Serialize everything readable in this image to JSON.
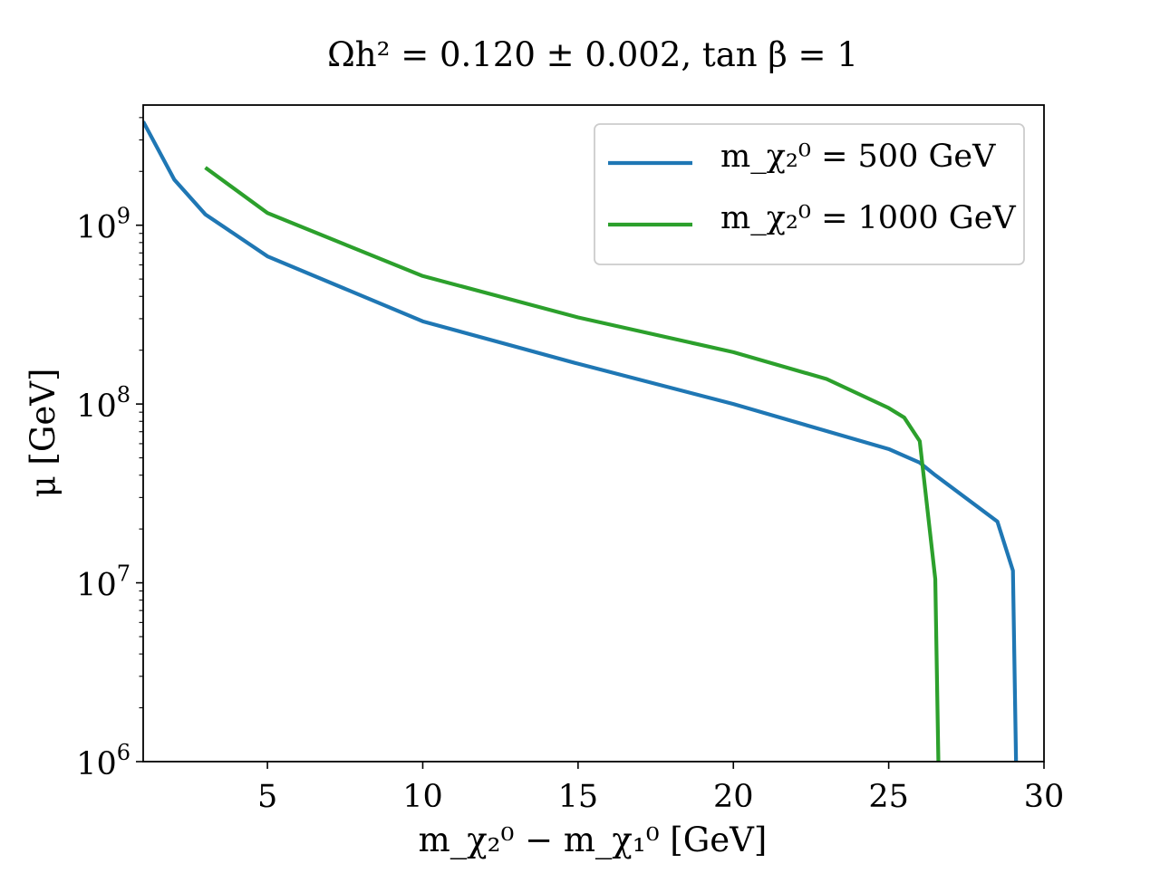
{
  "chart_data": {
    "type": "line",
    "title": "Ωh² = 0.120 ± 0.002,  tan β = 1",
    "xlabel": "m_χ₂⁰ − m_χ₁⁰ [GeV]",
    "ylabel": "μ [GeV]",
    "xlim": [
      1,
      30
    ],
    "ylim": [
      1000000,
      4700000000
    ],
    "yscale": "log",
    "grid": false,
    "legend_position": "upper right",
    "x_ticks": [
      {
        "value": 5,
        "label": "5"
      },
      {
        "value": 10,
        "label": "10"
      },
      {
        "value": 15,
        "label": "15"
      },
      {
        "value": 20,
        "label": "20"
      },
      {
        "value": 25,
        "label": "25"
      },
      {
        "value": 30,
        "label": "30"
      }
    ],
    "y_ticks": [
      {
        "value": 1000000,
        "base": "10",
        "exp": "6"
      },
      {
        "value": 10000000,
        "base": "10",
        "exp": "7"
      },
      {
        "value": 100000000,
        "base": "10",
        "exp": "8"
      },
      {
        "value": 1000000000,
        "base": "10",
        "exp": "9"
      }
    ],
    "series": [
      {
        "name": "m_χ₂⁰ = 500 GeV",
        "color": "#1f77b4",
        "x": [
          1,
          2,
          3,
          5,
          10,
          15,
          20,
          25,
          26,
          26.5,
          28.5,
          29,
          29.1
        ],
        "y": [
          3800000000,
          1800000000,
          1150000000,
          670000000,
          290000000,
          168000000,
          100000000,
          56000000,
          47000000,
          40000000,
          22000000,
          11700000,
          1000000
        ]
      },
      {
        "name": "m_χ₂⁰ = 1000 GeV",
        "color": "#2ca02c",
        "x": [
          3,
          5,
          10,
          15,
          20,
          23,
          25,
          25.5,
          26,
          26.5,
          26.6
        ],
        "y": [
          2100000000,
          1170000000,
          520000000,
          305000000,
          195000000,
          138000000,
          95000000,
          84000000,
          62000000,
          10500000,
          1000000
        ]
      }
    ]
  }
}
